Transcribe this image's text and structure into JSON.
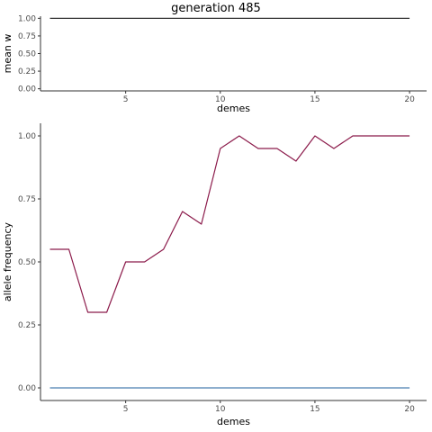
{
  "figure": {
    "title": "generation 485"
  },
  "chart_data": [
    {
      "type": "line",
      "title": "generation 485",
      "xlabel": "demes",
      "ylabel": "mean w",
      "xlim": [
        0.5,
        20.9
      ],
      "ylim": [
        -0.03,
        1.03
      ],
      "x_ticks": [
        5,
        10,
        15,
        20
      ],
      "x_tick_labels": [
        "5",
        "10",
        "15",
        "20"
      ],
      "y_ticks": [
        0,
        0.25,
        0.5,
        0.75,
        1
      ],
      "y_tick_labels": [
        "0.00",
        "0.25",
        "0.50",
        "0.75",
        "1.00"
      ],
      "grid": false,
      "legend": "none",
      "series": [
        {
          "color": "#333333",
          "x": [
            1,
            2,
            3,
            4,
            5,
            6,
            7,
            8,
            9,
            10,
            11,
            12,
            13,
            14,
            15,
            16,
            17,
            18,
            19,
            20
          ],
          "values": [
            1,
            1,
            1,
            1,
            1,
            1,
            1,
            1,
            1,
            1,
            1,
            1,
            1,
            1,
            1,
            1,
            1,
            1,
            1,
            1
          ]
        }
      ]
    },
    {
      "type": "line",
      "xlabel": "demes",
      "ylabel": "allele frequency",
      "xlim": [
        0.5,
        20.9
      ],
      "ylim": [
        -0.05,
        1.05
      ],
      "x_ticks": [
        5,
        10,
        15,
        20
      ],
      "x_tick_labels": [
        "5",
        "10",
        "15",
        "20"
      ],
      "y_ticks": [
        0,
        0.25,
        0.5,
        0.75,
        1
      ],
      "y_tick_labels": [
        "0.00",
        "0.25",
        "0.50",
        "0.75",
        "1.00"
      ],
      "grid": false,
      "legend": "none",
      "series": [
        {
          "color": "#8b1a4a",
          "x": [
            1,
            2,
            3,
            4,
            5,
            6,
            7,
            8,
            9,
            10,
            11,
            12,
            13,
            14,
            15,
            16,
            17,
            18,
            19,
            20
          ],
          "values": [
            0.55,
            0.55,
            0.3,
            0.3,
            0.5,
            0.5,
            0.55,
            0.7,
            0.65,
            0.95,
            1.0,
            0.95,
            0.95,
            0.9,
            1.0,
            0.95,
            1.0,
            1.0,
            1.0,
            1.0
          ]
        },
        {
          "color": "#4a7fb0",
          "x": [
            1,
            2,
            3,
            4,
            5,
            6,
            7,
            8,
            9,
            10,
            11,
            12,
            13,
            14,
            15,
            16,
            17,
            18,
            19,
            20
          ],
          "values": [
            0,
            0,
            0,
            0,
            0,
            0,
            0,
            0,
            0,
            0,
            0,
            0,
            0,
            0,
            0,
            0,
            0,
            0,
            0,
            0
          ]
        }
      ]
    }
  ]
}
